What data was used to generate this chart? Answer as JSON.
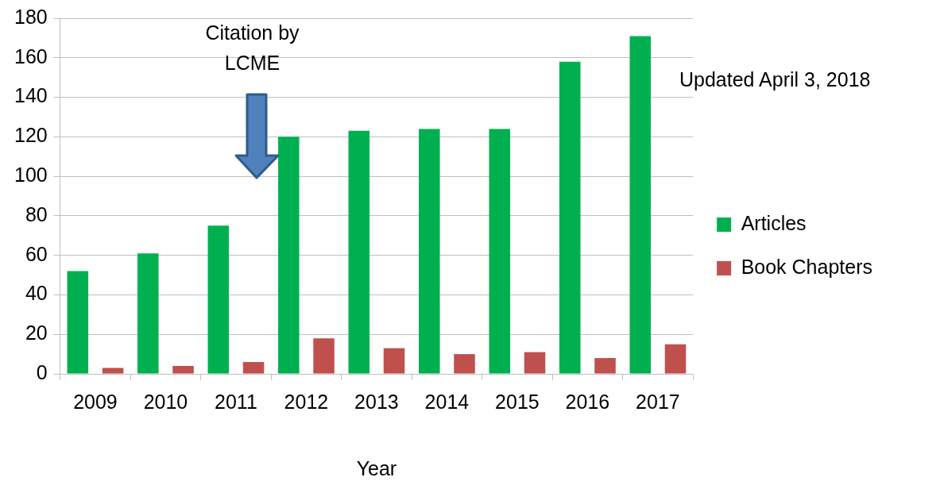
{
  "chart_data": {
    "type": "bar",
    "xlabel": "Year",
    "categories": [
      "2009",
      "2010",
      "2011",
      "2012",
      "2013",
      "2014",
      "2015",
      "2016",
      "2017"
    ],
    "series": [
      {
        "name": "Articles",
        "color": "#00b050",
        "values": [
          52,
          61,
          75,
          120,
          123,
          124,
          124,
          158,
          171
        ]
      },
      {
        "name": "Book Chapters",
        "color": "#c0504d",
        "values": [
          3,
          4,
          6,
          18,
          13,
          10,
          11,
          8,
          15
        ]
      }
    ],
    "ylim": [
      0,
      180
    ],
    "yticks": [
      0,
      20,
      40,
      60,
      80,
      100,
      120,
      140,
      160,
      180
    ],
    "grid": "y",
    "legend": "right",
    "annotations": [
      "Citation by LCME",
      "Updated April 3, 2018"
    ]
  }
}
